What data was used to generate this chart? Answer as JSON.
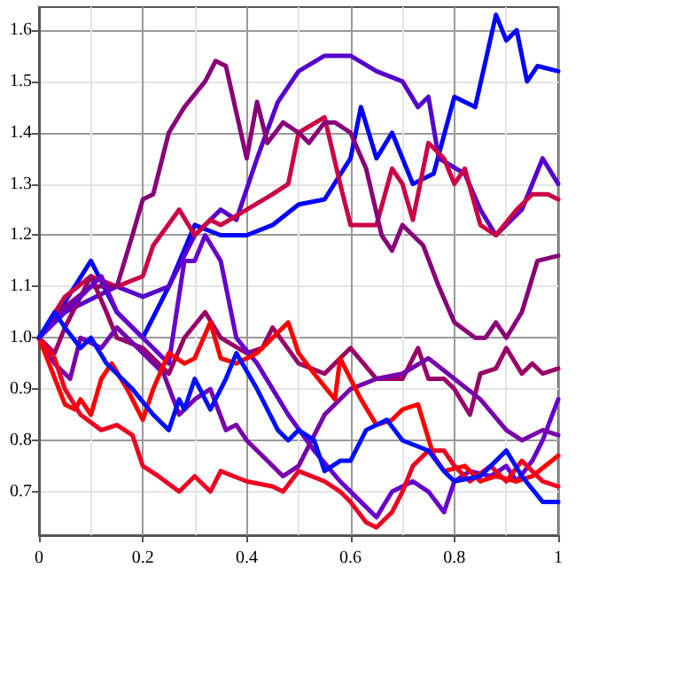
{
  "chart_data": {
    "type": "line",
    "xlim": [
      0,
      1
    ],
    "ylim": [
      0.615,
      1.645
    ],
    "xticks": [
      0,
      0.2,
      0.4,
      0.6,
      0.8,
      1
    ],
    "yticks": [
      0.7,
      0.8,
      0.9,
      {
        "value": 1,
        "label": "1.0"
      },
      1.1,
      1.2,
      1.3,
      1.4,
      1.5,
      1.6
    ],
    "grid": true,
    "marker": "none",
    "line_style": "solid",
    "series": [
      {
        "color": "#0000ff",
        "x": [
          0,
          0.05,
          0.1,
          0.15,
          0.2,
          0.25,
          0.3,
          0.35,
          0.4,
          0.45,
          0.5,
          0.55,
          0.6,
          0.62,
          0.65,
          0.68,
          0.72,
          0.76,
          0.8,
          0.84,
          0.88,
          0.9,
          0.92,
          0.94,
          0.96,
          1
        ],
        "values": [
          1.0,
          1.07,
          1.15,
          1.05,
          1.0,
          1.1,
          1.22,
          1.2,
          1.2,
          1.22,
          1.26,
          1.27,
          1.35,
          1.45,
          1.35,
          1.4,
          1.3,
          1.32,
          1.47,
          1.45,
          1.63,
          1.58,
          1.6,
          1.5,
          1.53,
          1.52
        ]
      },
      {
        "color": "#5500cc",
        "x": [
          0,
          0.05,
          0.15,
          0.2,
          0.25,
          0.3,
          0.35,
          0.38,
          0.42,
          0.46,
          0.5,
          0.55,
          0.6,
          0.65,
          0.7,
          0.73,
          0.75,
          0.77,
          0.82,
          0.85,
          0.88,
          0.9,
          0.93,
          0.97,
          1
        ],
        "values": [
          1.0,
          1.05,
          1.1,
          1.08,
          1.1,
          1.2,
          1.25,
          1.23,
          1.35,
          1.46,
          1.52,
          1.55,
          1.55,
          1.52,
          1.5,
          1.45,
          1.47,
          1.35,
          1.32,
          1.25,
          1.2,
          1.22,
          1.25,
          1.35,
          1.3
        ]
      },
      {
        "color": "#cc0044",
        "x": [
          0,
          0.05,
          0.1,
          0.15,
          0.2,
          0.22,
          0.27,
          0.3,
          0.33,
          0.35,
          0.4,
          0.45,
          0.48,
          0.5,
          0.55,
          0.58,
          0.6,
          0.65,
          0.68,
          0.7,
          0.72,
          0.75,
          0.78,
          0.8,
          0.82,
          0.85,
          0.88,
          0.92,
          0.95,
          0.98,
          1
        ],
        "values": [
          1.0,
          1.08,
          1.12,
          1.1,
          1.12,
          1.18,
          1.25,
          1.2,
          1.23,
          1.22,
          1.25,
          1.28,
          1.3,
          1.4,
          1.43,
          1.3,
          1.22,
          1.22,
          1.33,
          1.3,
          1.23,
          1.38,
          1.35,
          1.3,
          1.33,
          1.22,
          1.2,
          1.25,
          1.28,
          1.28,
          1.27
        ]
      },
      {
        "color": "#880077",
        "x": [
          0,
          0.05,
          0.1,
          0.15,
          0.18,
          0.2,
          0.22,
          0.25,
          0.28,
          0.32,
          0.34,
          0.36,
          0.4,
          0.42,
          0.44,
          0.47,
          0.5,
          0.52,
          0.55,
          0.57,
          0.6,
          0.63,
          0.66,
          0.68,
          0.7,
          0.72,
          0.74,
          0.77,
          0.8,
          0.84,
          0.86,
          0.88,
          0.9,
          0.93,
          0.96,
          1
        ],
        "values": [
          1.0,
          1.06,
          1.1,
          1.1,
          1.2,
          1.27,
          1.28,
          1.4,
          1.45,
          1.5,
          1.54,
          1.53,
          1.35,
          1.46,
          1.38,
          1.42,
          1.4,
          1.38,
          1.42,
          1.42,
          1.4,
          1.33,
          1.2,
          1.17,
          1.22,
          1.2,
          1.18,
          1.1,
          1.03,
          1.0,
          1.0,
          1.03,
          1.0,
          1.05,
          1.15,
          1.16
        ]
      },
      {
        "color": "#990066",
        "x": [
          0,
          0.03,
          0.05,
          0.08,
          0.1,
          0.13,
          0.15,
          0.2,
          0.25,
          0.28,
          0.32,
          0.35,
          0.4,
          0.43,
          0.45,
          0.5,
          0.55,
          0.6,
          0.65,
          0.7,
          0.73,
          0.75,
          0.78,
          0.8,
          0.83,
          0.85,
          0.88,
          0.9,
          0.93,
          0.95,
          0.97,
          1
        ],
        "values": [
          1.0,
          0.97,
          1.02,
          1.08,
          1.12,
          1.05,
          1.0,
          0.98,
          0.93,
          1.0,
          1.05,
          1.0,
          0.97,
          0.98,
          1.02,
          0.95,
          0.93,
          0.98,
          0.92,
          0.92,
          0.98,
          0.92,
          0.92,
          0.9,
          0.85,
          0.93,
          0.94,
          0.98,
          0.93,
          0.95,
          0.93,
          0.94
        ]
      },
      {
        "color": "#6600cc",
        "x": [
          0,
          0.05,
          0.1,
          0.12,
          0.15,
          0.2,
          0.25,
          0.28,
          0.3,
          0.32,
          0.35,
          0.38,
          0.42,
          0.48,
          0.53,
          0.58,
          0.62,
          0.65,
          0.68,
          0.72,
          0.75,
          0.78,
          0.8,
          0.83,
          0.87,
          0.9,
          0.92,
          0.95,
          0.97,
          1
        ],
        "values": [
          1.0,
          1.05,
          1.1,
          1.12,
          1.05,
          1.0,
          0.95,
          1.15,
          1.15,
          1.2,
          1.15,
          1.0,
          0.95,
          0.85,
          0.78,
          0.72,
          0.68,
          0.65,
          0.7,
          0.72,
          0.7,
          0.66,
          0.72,
          0.74,
          0.73,
          0.75,
          0.72,
          0.76,
          0.8,
          0.88
        ]
      },
      {
        "color": "#7700aa",
        "x": [
          0,
          0.03,
          0.06,
          0.08,
          0.12,
          0.15,
          0.2,
          0.24,
          0.27,
          0.3,
          0.33,
          0.36,
          0.38,
          0.4,
          0.43,
          0.47,
          0.5,
          0.55,
          0.6,
          0.65,
          0.7,
          0.75,
          0.8,
          0.85,
          0.9,
          0.93,
          0.97,
          1
        ],
        "values": [
          1.0,
          0.95,
          0.92,
          1.0,
          0.98,
          1.02,
          0.97,
          0.93,
          0.85,
          0.88,
          0.9,
          0.82,
          0.83,
          0.8,
          0.77,
          0.73,
          0.75,
          0.85,
          0.9,
          0.92,
          0.93,
          0.96,
          0.92,
          0.88,
          0.82,
          0.8,
          0.82,
          0.81
        ]
      },
      {
        "color": "#ff0000",
        "x": [
          0,
          0.05,
          0.07,
          0.08,
          0.1,
          0.12,
          0.14,
          0.17,
          0.2,
          0.22,
          0.25,
          0.28,
          0.3,
          0.33,
          0.35,
          0.38,
          0.42,
          0.45,
          0.48,
          0.5,
          0.53,
          0.57,
          0.58,
          0.6,
          0.62,
          0.65,
          0.68,
          0.7,
          0.73,
          0.76,
          0.78,
          0.82,
          0.85,
          0.88,
          0.92,
          0.95,
          1
        ],
        "values": [
          1.0,
          0.87,
          0.86,
          0.88,
          0.85,
          0.92,
          0.95,
          0.9,
          0.84,
          0.9,
          0.97,
          0.95,
          0.96,
          1.03,
          0.96,
          0.95,
          0.97,
          1.0,
          1.03,
          0.97,
          0.93,
          0.88,
          0.96,
          0.92,
          0.88,
          0.83,
          0.84,
          0.86,
          0.87,
          0.77,
          0.74,
          0.75,
          0.72,
          0.73,
          0.72,
          0.73,
          0.77
        ]
      },
      {
        "color": "#ee0022",
        "x": [
          0,
          0.03,
          0.05,
          0.08,
          0.12,
          0.15,
          0.18,
          0.2,
          0.23,
          0.27,
          0.3,
          0.33,
          0.35,
          0.4,
          0.45,
          0.47,
          0.5,
          0.55,
          0.58,
          0.6,
          0.63,
          0.65,
          0.68,
          0.7,
          0.72,
          0.75,
          0.78,
          0.8,
          0.83,
          0.87,
          0.9,
          0.93,
          0.97,
          1
        ],
        "values": [
          1.0,
          0.96,
          0.9,
          0.85,
          0.82,
          0.83,
          0.81,
          0.75,
          0.73,
          0.7,
          0.73,
          0.7,
          0.74,
          0.72,
          0.71,
          0.7,
          0.74,
          0.72,
          0.7,
          0.68,
          0.64,
          0.63,
          0.66,
          0.7,
          0.75,
          0.78,
          0.78,
          0.75,
          0.72,
          0.75,
          0.72,
          0.76,
          0.72,
          0.71
        ]
      },
      {
        "color": "#0011ff",
        "x": [
          0,
          0.03,
          0.05,
          0.08,
          0.1,
          0.13,
          0.15,
          0.18,
          0.22,
          0.25,
          0.27,
          0.28,
          0.3,
          0.33,
          0.36,
          0.38,
          0.42,
          0.46,
          0.48,
          0.5,
          0.53,
          0.55,
          0.58,
          0.6,
          0.63,
          0.67,
          0.7,
          0.75,
          0.78,
          0.8,
          0.85,
          0.88,
          0.9,
          0.93,
          0.97,
          1
        ],
        "values": [
          1.0,
          1.05,
          1.02,
          0.98,
          1.0,
          0.95,
          0.93,
          0.9,
          0.85,
          0.82,
          0.88,
          0.86,
          0.92,
          0.86,
          0.92,
          0.97,
          0.9,
          0.82,
          0.8,
          0.82,
          0.8,
          0.74,
          0.76,
          0.76,
          0.82,
          0.84,
          0.8,
          0.78,
          0.74,
          0.72,
          0.73,
          0.76,
          0.78,
          0.73,
          0.68,
          0.68
        ]
      }
    ]
  }
}
